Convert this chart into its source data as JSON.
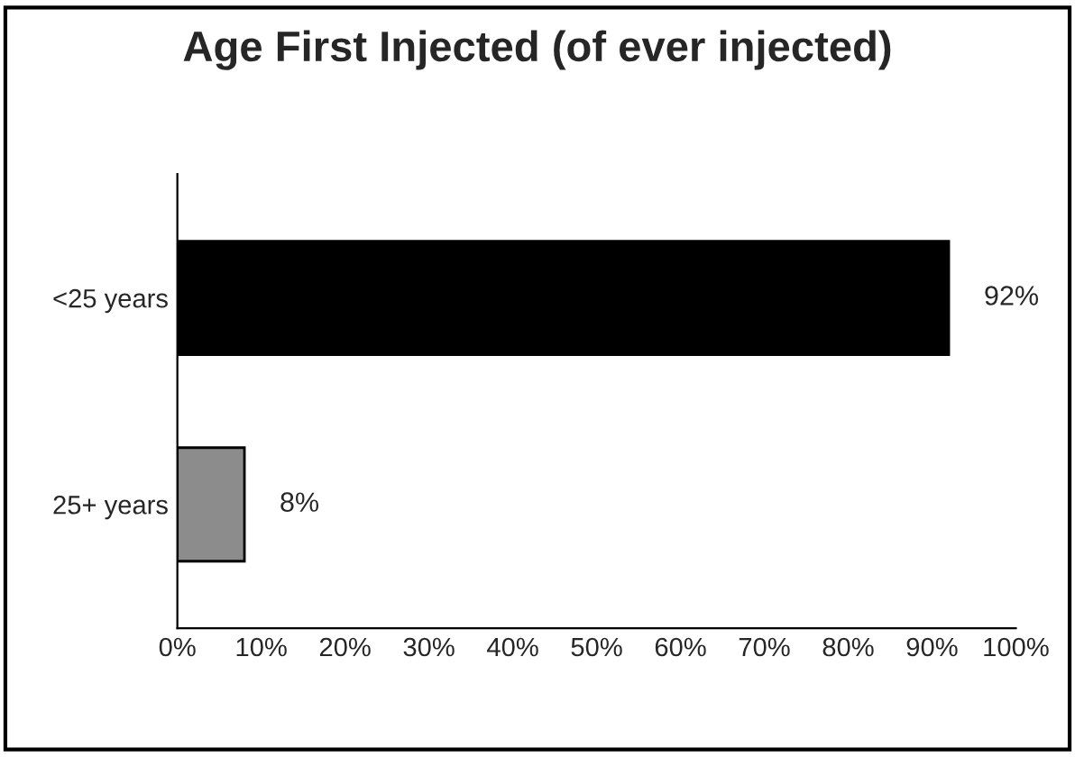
{
  "chart_data": {
    "type": "bar",
    "orientation": "horizontal",
    "title": "Age First Injected (of ever injected)",
    "categories": [
      "<25 years",
      "25+ years"
    ],
    "values": [
      92,
      8
    ],
    "colors": [
      "#000000",
      "#8c8c8c"
    ],
    "value_labels": [
      "92%",
      "8%"
    ],
    "xlim": [
      0,
      100
    ],
    "xticks": [
      {
        "value": 0,
        "label": "0%"
      },
      {
        "value": 10,
        "label": "10%"
      },
      {
        "value": 20,
        "label": "20%"
      },
      {
        "value": 30,
        "label": "30%"
      },
      {
        "value": 40,
        "label": "40%"
      },
      {
        "value": 50,
        "label": "50%"
      },
      {
        "value": 60,
        "label": "60%"
      },
      {
        "value": 70,
        "label": "70%"
      },
      {
        "value": 80,
        "label": "80%"
      },
      {
        "value": 90,
        "label": "90%"
      },
      {
        "value": 100,
        "label": "100%"
      }
    ],
    "grid": false,
    "legend": false
  }
}
